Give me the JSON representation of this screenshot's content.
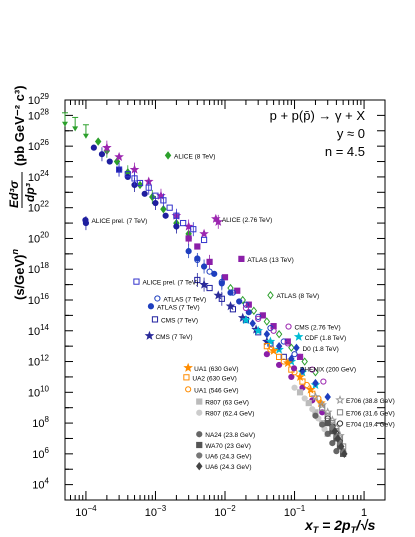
{
  "chart_data": {
    "type": "scatter",
    "xscale": "log",
    "yscale": "log",
    "xlim": [
      5e-05,
      2
    ],
    "ylim": [
      1000,
      1e+29
    ],
    "grid": false,
    "legend_placement": "inline labels next to each series",
    "annotations": [
      "p + p(p̄) → γ + X",
      "y ≈ 0",
      "n = 4.5"
    ],
    "xlabel": {
      "main": "x",
      "sub": "T",
      "rest": " = 2p",
      "sub2": "T",
      "tail": "/√s"
    },
    "ylabel": {
      "prefix": "(s/GeV)",
      "exp_n": "n",
      "frac_num": "Ed³σ",
      "frac_den": "dp³",
      "units": "(pb GeV⁻² c³)"
    },
    "xticks": [
      {
        "v": 0.0001,
        "b": "10",
        "e": "−4"
      },
      {
        "v": 0.001,
        "b": "10",
        "e": "−3"
      },
      {
        "v": 0.01,
        "b": "10",
        "e": "−2"
      },
      {
        "v": 0.1,
        "b": "10",
        "e": "−1"
      },
      {
        "v": 1,
        "b": "1",
        "e": ""
      }
    ],
    "yticks": [
      {
        "v": 10000.0,
        "e": "4"
      },
      {
        "v": 1000000.0,
        "e": "6"
      },
      {
        "v": 100000000.0,
        "e": "8"
      },
      {
        "v": 10000000000.0,
        "e": "10"
      },
      {
        "v": 1000000000000.0,
        "e": "12"
      },
      {
        "v": 100000000000000.0,
        "e": "14"
      },
      {
        "v": 1e+16,
        "e": "16"
      },
      {
        "v": 1e+18,
        "e": "18"
      },
      {
        "v": 1e+20,
        "e": "20"
      },
      {
        "v": 1e+22,
        "e": "22"
      },
      {
        "v": 1e+24,
        "e": "24"
      },
      {
        "v": 1e+26,
        "e": "26"
      },
      {
        "v": 1e+28,
        "e": "28"
      },
      {
        "v": 1e+29,
        "e": "29"
      }
    ],
    "series": [
      {
        "name": "ALICE (8 TeV)",
        "color": "#2ca02c",
        "marker": "diamond",
        "legend": {
          "x": 0.00185,
          "y": 1.6e+25
        },
        "x": [
          5e-05,
          7e-05,
          0.0001,
          0.00015,
          0.0002,
          0.00028,
          0.0004,
          0.0006,
          0.0009,
          0.0013,
          0.002,
          0.003
        ],
        "y": [
          6e+27,
          3e+27,
          1e+27,
          2e+26,
          5e+25,
          1e+25,
          2e+24,
          3e+23,
          5e+22,
          8e+21,
          1e+21,
          2e+20
        ],
        "upper_limit_first": 3
      },
      {
        "name": "ALICE prel. (7 TeV)",
        "color": "#1f1f9f",
        "marker": "circle",
        "legend": {
          "x": 0.00012,
          "y": 1e+21
        },
        "x": [
          0.0001,
          0.00013,
          0.00017,
          0.00022,
          0.0003,
          0.0004,
          0.0005,
          0.0007,
          0.001,
          0.0014,
          0.002,
          0.003
        ],
        "y": [
          1e+21,
          8e+25,
          3e+25,
          1e+25,
          3e+24,
          1e+24,
          3e+23,
          8e+22,
          2e+22,
          3e+21,
          6e+20,
          1e+20
        ],
        "first_isolated": true
      },
      {
        "name": "ALICE (2.76 TeV)",
        "color": "#9c27b0",
        "marker": "star",
        "legend": {
          "x": 0.009,
          "y": 1.2e+21
        },
        "x": [
          0.0002,
          0.0003,
          0.0005,
          0.0008,
          0.0012,
          0.002,
          0.003,
          0.005,
          0.008
        ],
        "y": [
          8e+25,
          2e+25,
          3e+24,
          5e+23,
          6e+22,
          3e+21,
          6e+20,
          2e+20,
          1.2e+21
        ]
      },
      {
        "name": "ALICE prel. (7 TeV)",
        "color": "#3333cc",
        "marker": "open-square",
        "legend": {
          "x": 0.00065,
          "y": 1e+17
        },
        "x": [
          0.0003,
          0.0004,
          0.0005,
          0.0006,
          0.0008,
          0.001,
          0.0013,
          0.0016,
          0.002,
          0.0025,
          0.0035,
          0.005
        ],
        "y": [
          3e+24,
          1.5e+24,
          8e+23,
          4e+23,
          2e+23,
          6e+22,
          3e+22,
          1e+22,
          3e+21,
          1e+21,
          4e+20,
          8e+19
        ]
      },
      {
        "name": "ATLAS (13 TeV)",
        "color": "#8b1fa8",
        "marker": "square",
        "legend": {
          "x": 0.021,
          "y": 3e+18
        },
        "x": [
          0.003,
          0.004,
          0.006,
          0.01,
          0.015,
          0.022,
          0.035,
          0.05,
          0.08,
          0.12
        ],
        "y": [
          1e+20,
          3e+19,
          3e+18,
          3e+17,
          4e+16,
          5000000000000000.0,
          1000000000000000.0,
          200000000000000.0,
          20000000000000.0,
          2000000000000.0
        ]
      },
      {
        "name": "ATLAS (7 TeV)",
        "color": "#1f3fbf",
        "marker": "open-circle",
        "legend": {
          "x": 0.0013,
          "y": 8000000000000000.0
        },
        "x": [
          0.004,
          0.006,
          0.009,
          0.013,
          0.02,
          0.03,
          0.045,
          0.07,
          0.1
        ],
        "y": [
          4e+18,
          7e+17,
          1.5e+17,
          3e+16,
          5000000000000000.0,
          800000000000000.0,
          150000000000000.0,
          20000000000000.0,
          3000000000000.0
        ]
      },
      {
        "name": "ATLAS (8 TeV)",
        "color": "#2ca02c",
        "marker": "open-diamond",
        "legend": {
          "x": 0.055,
          "y": 1.3e+16
        },
        "x": [
          0.012,
          0.018,
          0.026,
          0.04,
          0.06,
          0.09,
          0.14,
          0.2
        ],
        "y": [
          6e+16,
          1e+16,
          2000000000000000.0,
          400000000000000.0,
          60000000000000.0,
          8000000000000.0,
          1000000000000.0,
          200000000000.0
        ]
      },
      {
        "name": "ATLAS (7 TeV)",
        "color": "#1f3fbf",
        "marker": "circle",
        "legend": {
          "x": 0.00105,
          "y": 2500000000000000.0
        },
        "x": [
          0.003,
          0.004,
          0.005,
          0.007,
          0.009,
          0.012,
          0.016,
          0.022
        ],
        "y": [
          1.5e+19,
          5e+18,
          1.5e+18,
          5e+17,
          1.2e+17,
          3e+16,
          8000000000000000.0,
          1600000000000000.0
        ]
      },
      {
        "name": "CMS (2.76 TeV)",
        "color": "#9c27b0",
        "marker": "open-circle",
        "legend": {
          "x": 0.1,
          "y": 120000000000000.0
        },
        "x": [
          0.02,
          0.03,
          0.05,
          0.08,
          0.12,
          0.18,
          0.26
        ],
        "y": [
          3000000000000000.0,
          600000000000000.0,
          100000000000000.0,
          15000000000000.0,
          2000000000000.0,
          300000000000.0,
          50000000000.0
        ]
      },
      {
        "name": "CMS (7 TeV)",
        "color": "#1f1fa0",
        "marker": "open-square",
        "legend": {
          "x": 0.0012,
          "y": 350000000000000.0
        },
        "x": [
          0.004,
          0.006,
          0.009,
          0.013,
          0.02,
          0.03,
          0.045,
          0.07
        ],
        "y": [
          2e+17,
          6e+16,
          1.2e+16,
          2500000000000000.0,
          500000000000000.0,
          80000000000000.0,
          15000000000000.0,
          2000000000000.0
        ]
      },
      {
        "name": "CMS (7 TeV)",
        "color": "#2b2b9a",
        "marker": "star",
        "legend": {
          "x": 0.001,
          "y": 30000000000000.0
        },
        "x": [
          0.005,
          0.008,
          0.012,
          0.018,
          0.028,
          0.04
        ],
        "y": [
          1e+17,
          2e+16,
          4000000000000000.0,
          700000000000000.0,
          120000000000000.0,
          20000000000000.0
        ]
      },
      {
        "name": "CDF (1.8 TeV)",
        "color": "#00bcd4",
        "marker": "star",
        "legend": {
          "x": 0.14,
          "y": 26000000000000.0
        },
        "x": [
          0.02,
          0.03,
          0.045,
          0.06,
          0.09,
          0.13,
          0.2
        ],
        "y": [
          500000000000000.0,
          100000000000000.0,
          20000000000000.0,
          6000000000000.0,
          1000000000000.0,
          200000000000.0,
          30000000000.0
        ]
      },
      {
        "name": "D0 (1.8 TeV)",
        "color": "#1f3fbf",
        "marker": "diamond",
        "legend": {
          "x": 0.13,
          "y": 5000000000000.0
        },
        "x": [
          0.025,
          0.04,
          0.06,
          0.09,
          0.13,
          0.2,
          0.3
        ],
        "y": [
          300000000000000.0,
          60000000000000.0,
          10000000000000.0,
          1500000000000.0,
          250000000000.0,
          40000000000.0,
          5000000000.0
        ]
      },
      {
        "name": "UA1 (630 GeV)",
        "color": "#ff8c00",
        "marker": "star",
        "legend": {
          "x": 0.0036,
          "y": 250000000000.0
        },
        "x": [
          0.05,
          0.08,
          0.12,
          0.17,
          0.24
        ],
        "y": [
          5000000000000.0,
          800000000000.0,
          100000000000.0,
          15000000000.0,
          2000000000.0
        ]
      },
      {
        "name": "PHENIX (200 GeV)",
        "color": "#8b1fa8",
        "marker": "circle",
        "legend": {
          "x": 0.12,
          "y": 230000000000.0
        },
        "x": [
          0.04,
          0.06,
          0.09,
          0.13,
          0.18,
          0.25
        ],
        "y": [
          3000000000000.0,
          600000000000.0,
          100000000000.0,
          20000000000.0,
          3000000000.0,
          500000000.0
        ]
      },
      {
        "name": "UA2 (630 GeV)",
        "color": "#ff8c00",
        "marker": "open-square",
        "legend": {
          "x": 0.0034,
          "y": 60000000000.0
        },
        "x": [
          0.04,
          0.06,
          0.09,
          0.13,
          0.18
        ],
        "y": [
          10000000000000.0,
          2000000000000.0,
          300000000000.0,
          50000000000.0,
          8000000000.0
        ]
      },
      {
        "name": "UA1 (546 GeV)",
        "color": "#ff8c00",
        "marker": "open-circle",
        "legend": {
          "x": 0.0036,
          "y": 10000000000.0
        },
        "x": [
          0.045,
          0.07,
          0.1,
          0.15,
          0.22
        ],
        "y": [
          6000000000000.0,
          1000000000000.0,
          200000000000.0,
          30000000000.0,
          4000000000.0
        ]
      },
      {
        "name": "E706 (38.8 GeV)",
        "color": "#999999",
        "marker": "open-star",
        "legend": {
          "x": 0.55,
          "y": 2000000000.0
        },
        "x": [
          0.2,
          0.25,
          0.3,
          0.35,
          0.4,
          0.45
        ],
        "y": [
          5000000000.0,
          1500000000.0,
          500000000.0,
          150000000.0,
          50000000.0,
          15000000.0
        ]
      },
      {
        "name": "R807 (63 GeV)",
        "color": "#bbbbbb",
        "marker": "square",
        "legend": {
          "x": 0.0052,
          "y": 1600000000.0
        },
        "x": [
          0.12,
          0.16,
          0.2,
          0.25,
          0.3
        ],
        "y": [
          10000000000.0,
          2000000000.0,
          500000000.0,
          100000000.0,
          20000000.0
        ]
      },
      {
        "name": "E706 (31.6 GeV)",
        "color": "#888888",
        "marker": "open-square",
        "legend": {
          "x": 0.55,
          "y": 320000000.0
        },
        "x": [
          0.25,
          0.3,
          0.35,
          0.4,
          0.45,
          0.5
        ],
        "y": [
          1000000000.0,
          300000000.0,
          100000000.0,
          30000000.0,
          10000000.0,
          3000000.0
        ]
      },
      {
        "name": "R807 (62.4 GeV)",
        "color": "#cccccc",
        "marker": "circle",
        "legend": {
          "x": 0.0052,
          "y": 300000000.0
        },
        "x": [
          0.1,
          0.14,
          0.18,
          0.22,
          0.27
        ],
        "y": [
          20000000000.0,
          4000000000.0,
          800000000.0,
          200000000.0,
          40000000.0
        ]
      },
      {
        "name": "E704 (19.4 GeV)",
        "color": "#333333",
        "marker": "open-circle",
        "legend": {
          "x": 0.55,
          "y": 60000000.0
        },
        "x": [
          0.3,
          0.35,
          0.4,
          0.45
        ],
        "y": [
          200000000.0,
          60000000.0,
          20000000.0,
          6000000.0
        ]
      },
      {
        "name": "NA24 (23.8 GeV)",
        "color": "#666666",
        "marker": "circle",
        "legend": {
          "x": 0.0052,
          "y": 12000000.0
        },
        "x": [
          0.2,
          0.25,
          0.3,
          0.35,
          0.4
        ],
        "y": [
          300000000.0,
          80000000.0,
          20000000.0,
          5000000.0,
          1500000.0
        ]
      },
      {
        "name": "WA70 (23 GeV)",
        "color": "#555555",
        "marker": "square",
        "legend": {
          "x": 0.0052,
          "y": 2400000.0
        },
        "x": [
          0.3,
          0.35,
          0.4,
          0.45,
          0.5
        ],
        "y": [
          100000000.0,
          30000000.0,
          10000000.0,
          3000000.0,
          1000000.0
        ]
      },
      {
        "name": "UA6 (24.3 GeV)",
        "color": "#777777",
        "marker": "circle",
        "legend": {
          "x": 0.0052,
          "y": 500000.0
        },
        "x": [
          0.35,
          0.4,
          0.45,
          0.5
        ],
        "y": [
          50000000.0,
          15000000.0,
          5000000.0,
          1500000.0
        ]
      },
      {
        "name": "UA6 (24.3 GeV)",
        "color": "#444444",
        "marker": "diamond",
        "legend": {
          "x": 0.0052,
          "y": 100000.0
        },
        "x": [
          0.38,
          0.42,
          0.47,
          0.52
        ],
        "y": [
          30000000.0,
          10000000.0,
          3000000.0,
          1000000.0
        ]
      }
    ]
  }
}
